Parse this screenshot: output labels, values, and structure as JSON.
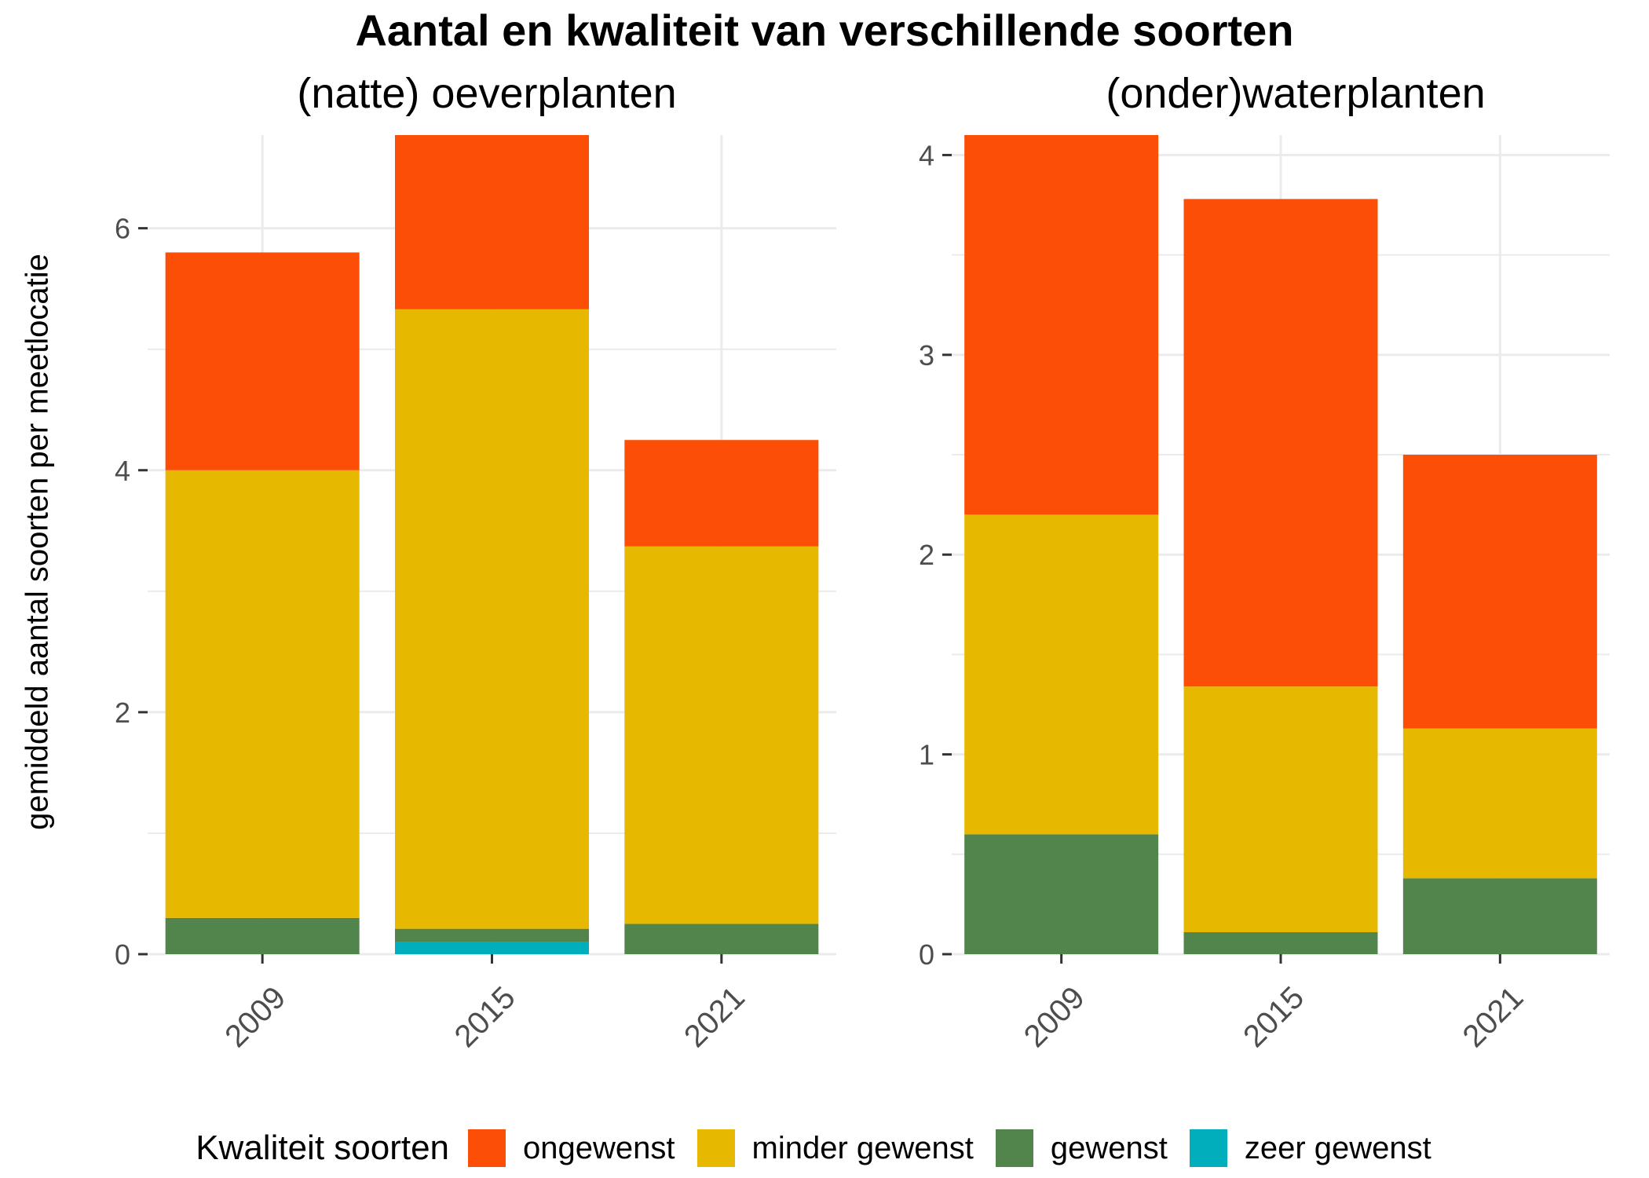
{
  "chart_data": {
    "type": "bar",
    "stacked": true,
    "title": "Aantal en kwaliteit van verschillende soorten",
    "ylabel": "gemiddeld aantal soorten per meetlocatie",
    "legend": {
      "title": "Kwaliteit soorten",
      "position": "bottom",
      "items": [
        {
          "name": "ongewenst",
          "color": "#FC4E07"
        },
        {
          "name": "minder gewenst",
          "color": "#E7B800"
        },
        {
          "name": "gewenst",
          "color": "#52854C"
        },
        {
          "name": "zeer gewenst",
          "color": "#00AFBB"
        }
      ]
    },
    "panels": [
      {
        "title": "(natte) oeverplanten",
        "categories": [
          "2009",
          "2015",
          "2021"
        ],
        "yticks": [
          0,
          2,
          4,
          6
        ],
        "ylim": [
          0,
          6.77
        ],
        "series": [
          {
            "name": "zeer gewenst",
            "values": [
              0,
              0.1,
              0
            ]
          },
          {
            "name": "gewenst",
            "values": [
              0.3,
              0.11,
              0.25
            ]
          },
          {
            "name": "minder gewenst",
            "values": [
              3.7,
              5.12,
              3.12
            ]
          },
          {
            "name": "ongewenst",
            "values": [
              1.8,
              1.44,
              0.88
            ]
          }
        ]
      },
      {
        "title": "(onder)waterplanten",
        "categories": [
          "2009",
          "2015",
          "2021"
        ],
        "yticks": [
          0,
          1,
          2,
          3,
          4
        ],
        "ylim": [
          0,
          4.1
        ],
        "series": [
          {
            "name": "zeer gewenst",
            "values": [
              0,
              0,
              0
            ]
          },
          {
            "name": "gewenst",
            "values": [
              0.6,
              0.11,
              0.38
            ]
          },
          {
            "name": "minder gewenst",
            "values": [
              1.6,
              1.23,
              0.75
            ]
          },
          {
            "name": "ongewenst",
            "values": [
              1.9,
              2.44,
              1.37
            ]
          }
        ]
      }
    ]
  }
}
